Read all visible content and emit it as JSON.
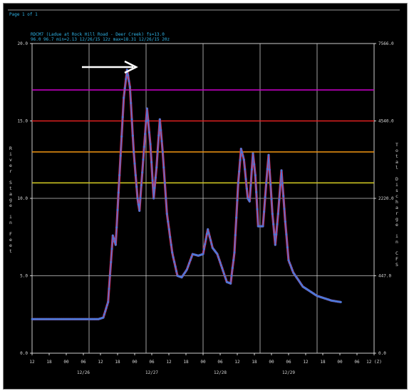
{
  "header": {
    "page_label": "Page 1 of 1",
    "title": "RDCM7 (Ladue at Rock Hill Road - Deer Creek) fs=13.0",
    "subtitle": "96.0 96.7  min=2.13 12/26/15 12z max=18.31 12/26/15 20z"
  },
  "chart_data": {
    "type": "line",
    "xlabel": "(Z)",
    "ylabel_left": "River Stage in Feet",
    "ylabel_right": "Total Discharge in CFS",
    "xlim_hours": [
      0,
      72
    ],
    "ylim": [
      0,
      20
    ],
    "y_ticks": [
      "0.0",
      "5.0",
      "10.0",
      "15.0",
      "20.0"
    ],
    "y2_ticks": [
      "0.0",
      "447.0",
      "2220.0",
      "4540.0",
      "7566.0"
    ],
    "x_tick_labels": [
      "12",
      "18",
      "00",
      "06",
      "12",
      "18",
      "00",
      "06",
      "12",
      "18",
      "00",
      "06",
      "12",
      "18",
      "00",
      "06",
      "12",
      "18",
      "00",
      "06",
      "12 (Z)"
    ],
    "date_labels": [
      "12/26",
      "12/27",
      "12/28",
      "12/29"
    ],
    "thresholds": [
      {
        "value": 17.0,
        "color": "#c000c0"
      },
      {
        "value": 15.0,
        "color": "#e02020"
      },
      {
        "value": 13.0,
        "color": "#e08a10"
      },
      {
        "value": 11.0,
        "color": "#c8c020"
      }
    ],
    "series": [
      {
        "color": "#4a78d8",
        "outline": "#d23060",
        "points": [
          [
            0,
            2.2
          ],
          [
            8,
            2.2
          ],
          [
            14,
            2.2
          ],
          [
            15,
            2.3
          ],
          [
            16.0,
            3.3
          ],
          [
            17,
            7.6
          ],
          [
            17.6,
            7.0
          ],
          [
            18.4,
            11.5
          ],
          [
            19.3,
            16.5
          ],
          [
            20.0,
            18.3
          ],
          [
            20.6,
            17.2
          ],
          [
            21.4,
            13.0
          ],
          [
            22.2,
            10.0
          ],
          [
            22.6,
            9.2
          ],
          [
            23.4,
            12.5
          ],
          [
            24.2,
            15.8
          ],
          [
            24.9,
            13.5
          ],
          [
            25.6,
            10.0
          ],
          [
            26.2,
            12.0
          ],
          [
            26.9,
            15.1
          ],
          [
            27.5,
            13.0
          ],
          [
            28.4,
            9.0
          ],
          [
            29.5,
            6.5
          ],
          [
            30.6,
            5.0
          ],
          [
            31.5,
            4.9
          ],
          [
            32.6,
            5.4
          ],
          [
            33.8,
            6.4
          ],
          [
            35.0,
            6.3
          ],
          [
            36.0,
            6.4
          ],
          [
            37.0,
            8.0
          ],
          [
            38.0,
            6.8
          ],
          [
            39.0,
            6.4
          ],
          [
            40.0,
            5.5
          ],
          [
            41.0,
            4.6
          ],
          [
            41.8,
            4.5
          ],
          [
            42.6,
            6.5
          ],
          [
            43.4,
            11.0
          ],
          [
            44.0,
            13.2
          ],
          [
            44.6,
            12.5
          ],
          [
            45.4,
            10.0
          ],
          [
            45.8,
            9.8
          ],
          [
            46.5,
            12.9
          ],
          [
            47.0,
            11.5
          ],
          [
            47.6,
            8.2
          ],
          [
            48.6,
            8.2
          ],
          [
            49.3,
            11.0
          ],
          [
            49.8,
            12.8
          ],
          [
            50.6,
            9.0
          ],
          [
            51.2,
            7.0
          ],
          [
            51.8,
            9.0
          ],
          [
            52.5,
            11.8
          ],
          [
            53.3,
            8.5
          ],
          [
            54.0,
            6.0
          ],
          [
            55.0,
            5.2
          ],
          [
            57.0,
            4.3
          ],
          [
            60.0,
            3.7
          ],
          [
            63.0,
            3.4
          ],
          [
            65.0,
            3.3
          ]
        ]
      }
    ]
  }
}
